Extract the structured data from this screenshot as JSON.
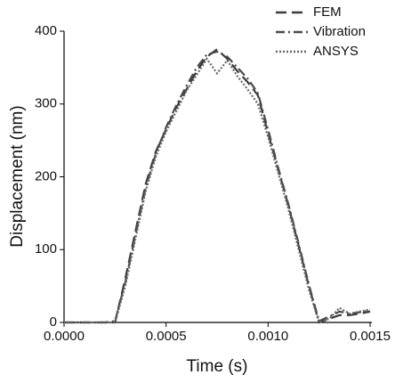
{
  "chart_data": {
    "type": "line",
    "xlabel": "Time (s)",
    "ylabel": "Displacement (nm)",
    "x": [
      0,
      5e-05,
      0.0001,
      0.00015,
      0.0002,
      0.00025,
      0.0003,
      0.00035,
      0.0004,
      0.00045,
      0.0005,
      0.00055,
      0.0006,
      0.00065,
      0.0007,
      0.00075,
      0.0008,
      0.00085,
      0.0009,
      0.00095,
      0.001,
      0.00105,
      0.0011,
      0.00115,
      0.0012,
      0.00125,
      0.0013,
      0.00135,
      0.0014,
      0.00145,
      0.0015
    ],
    "series": [
      {
        "name": "FEM",
        "color": "#3a3a3a",
        "dash": "12,6",
        "values": [
          0,
          0,
          0,
          0,
          0,
          0,
          60,
          125,
          190,
          235,
          265,
          295,
          320,
          345,
          365,
          375,
          362,
          345,
          330,
          312,
          260,
          210,
          160,
          105,
          50,
          0,
          5,
          10,
          10,
          12,
          15
        ]
      },
      {
        "name": "Vibration",
        "color": "#4a4a4a",
        "dash": "10,4,2,4",
        "values": [
          0,
          0,
          0,
          0,
          0,
          2,
          55,
          120,
          185,
          232,
          268,
          298,
          325,
          350,
          368,
          372,
          365,
          350,
          335,
          315,
          265,
          212,
          162,
          108,
          52,
          2,
          8,
          15,
          12,
          14,
          16
        ]
      },
      {
        "name": "ANSYS",
        "color": "#666666",
        "dash": "2,2",
        "values": [
          0,
          0,
          0,
          0,
          0,
          0,
          50,
          115,
          180,
          228,
          262,
          290,
          318,
          340,
          362,
          342,
          360,
          338,
          320,
          300,
          255,
          205,
          155,
          100,
          45,
          0,
          5,
          20,
          12,
          15,
          18
        ]
      }
    ],
    "xlim": [
      0,
      0.0015
    ],
    "xticks": [
      {
        "value": 0,
        "label": "0.0000"
      },
      {
        "value": 0.0005,
        "label": "0.0005"
      },
      {
        "value": 0.001,
        "label": "0.0010"
      },
      {
        "value": 0.0015,
        "label": "0.0015"
      }
    ],
    "ylim": [
      0,
      400
    ],
    "yticks": [
      0,
      100,
      200,
      300,
      400
    ],
    "legend": "top-right"
  }
}
